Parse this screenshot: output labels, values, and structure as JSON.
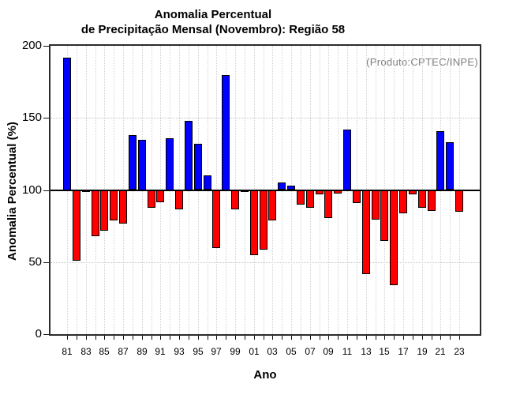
{
  "title": {
    "line1": "Anomalia Percentual",
    "line2": "de Precipitação Mensal (Novembro): Região 58"
  },
  "annotation": "(Produto:CPTEC/INPE)",
  "chart_data": {
    "type": "bar",
    "title": "Anomalia Percentual de Precipitação Mensal (Novembro): Região 58",
    "xlabel": "Ano",
    "ylabel": "Anomalia Percentual (%)",
    "ylim": [
      0,
      200
    ],
    "baseline": 100,
    "y_ticks": [
      0,
      50,
      100,
      150,
      200
    ],
    "grid": "dotted",
    "legend_position": "none",
    "label_every": 2,
    "categories": [
      "81",
      "82",
      "83",
      "84",
      "85",
      "86",
      "87",
      "88",
      "89",
      "90",
      "91",
      "92",
      "93",
      "94",
      "95",
      "96",
      "97",
      "98",
      "99",
      "00",
      "01",
      "02",
      "03",
      "04",
      "05",
      "06",
      "07",
      "08",
      "09",
      "10",
      "11",
      "12",
      "13",
      "14",
      "15",
      "16",
      "17",
      "18",
      "19",
      "20",
      "21",
      "22",
      "23"
    ],
    "values": [
      192,
      51,
      99,
      68,
      72,
      79,
      77,
      138,
      135,
      88,
      92,
      136,
      87,
      148,
      132,
      110,
      60,
      180,
      87,
      99,
      55,
      59,
      79,
      105,
      103,
      90,
      88,
      97,
      81,
      98,
      142,
      91,
      42,
      80,
      65,
      34,
      84,
      97,
      88,
      86,
      141,
      133,
      85
    ],
    "color_above_baseline": "#0000ff",
    "color_below_baseline": "#ff0000",
    "bar_border_color": "#000000",
    "annotation_color": "#7e7e7e"
  }
}
